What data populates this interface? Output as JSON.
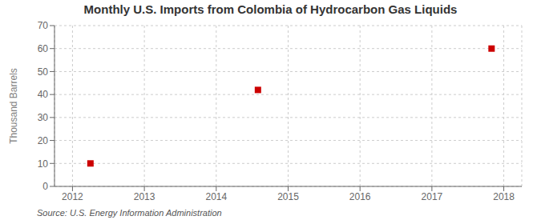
{
  "chart_data": {
    "type": "scatter",
    "title": "Monthly U.S. Imports from Colombia of Hydrocarbon Gas Liquids",
    "ylabel": "Thousand Barrels",
    "source": "Source: U.S. Energy Information Administration",
    "x": [
      2012.25,
      2014.58,
      2017.83
    ],
    "values": [
      10,
      42,
      60
    ],
    "color": "#CC0000",
    "marker": "square",
    "xlim": [
      2011.75,
      2018.25
    ],
    "xticks": [
      2012,
      2013,
      2014,
      2015,
      2016,
      2017,
      2018
    ],
    "ylim": [
      0,
      70
    ],
    "yticks": [
      0,
      10,
      20,
      30,
      40,
      50,
      60,
      70
    ],
    "grid": true
  }
}
